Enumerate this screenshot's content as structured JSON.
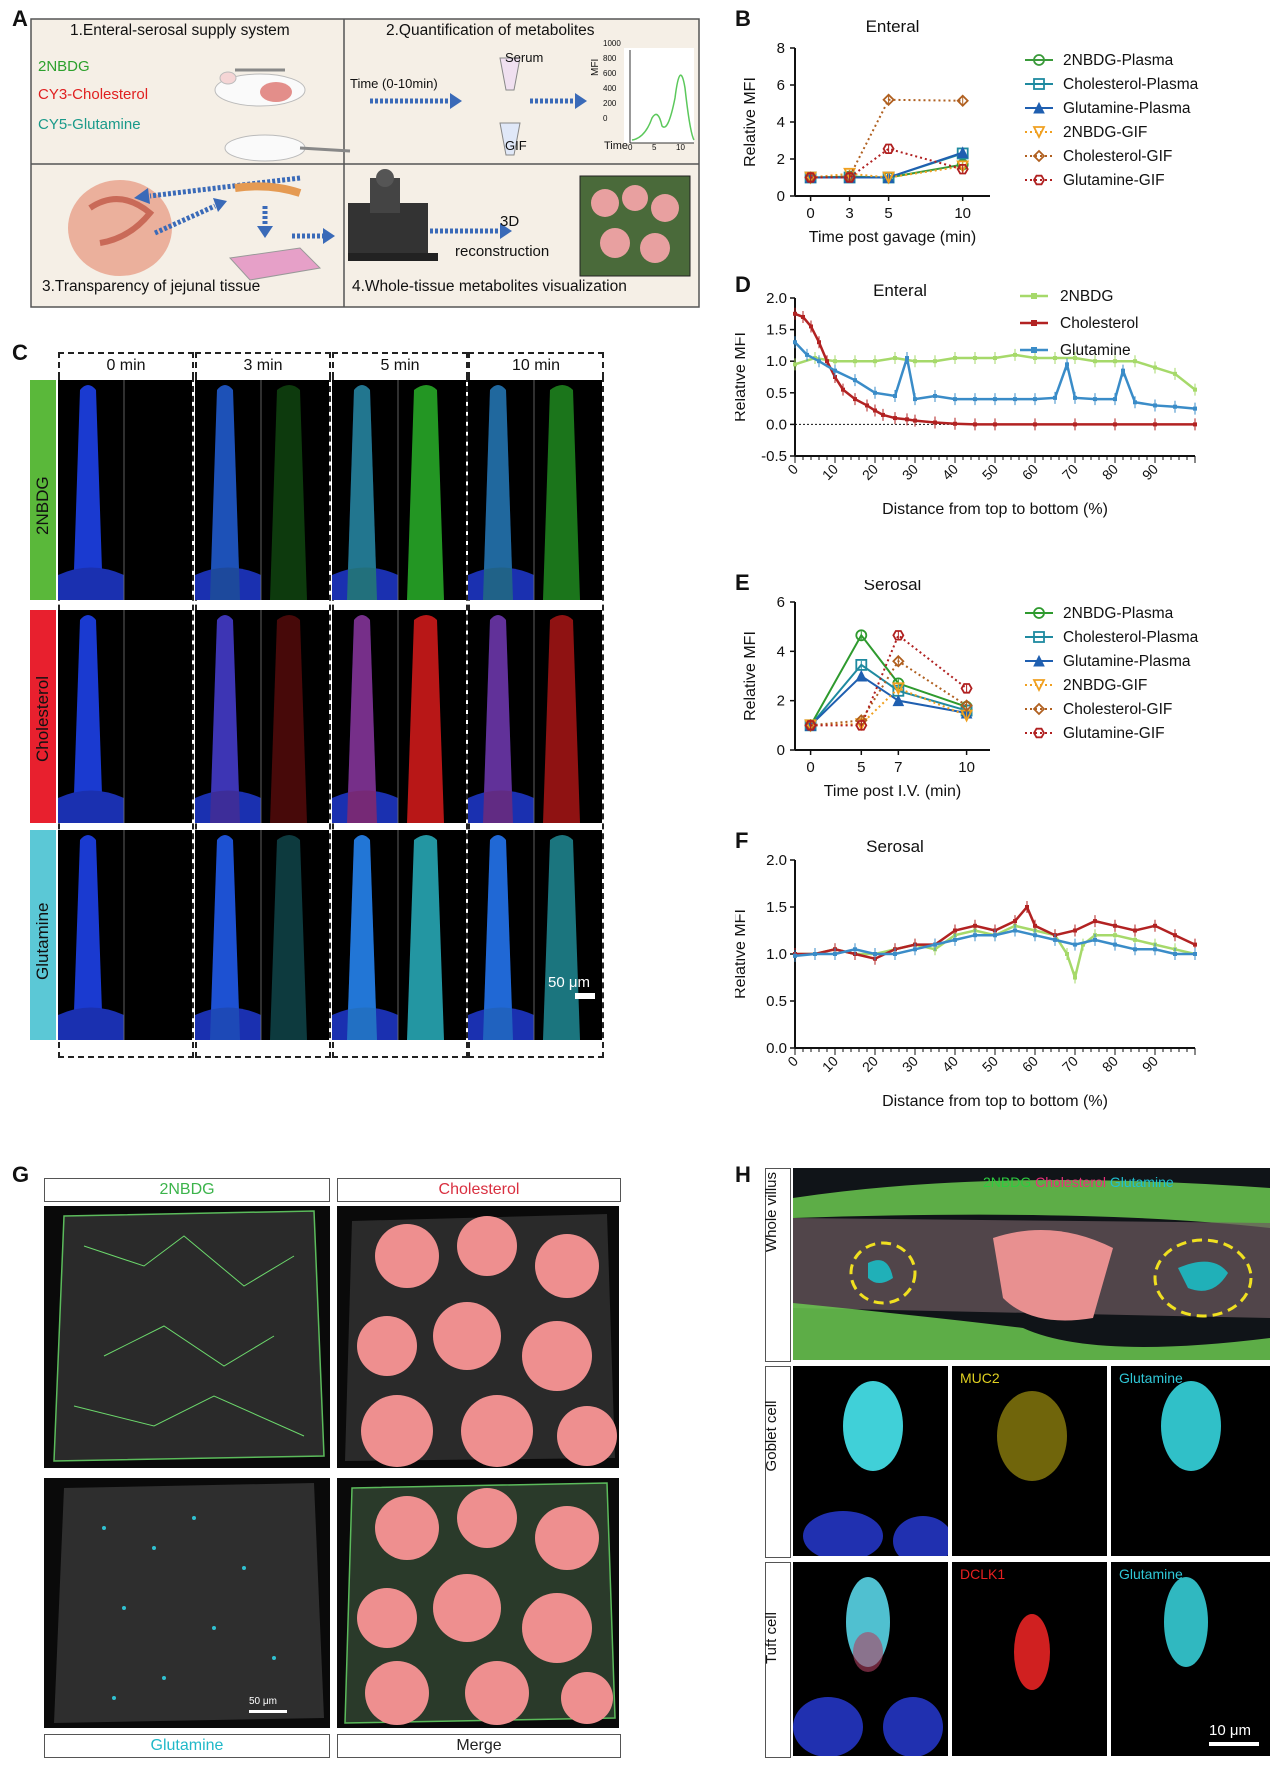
{
  "panels": {
    "A": "A",
    "B": "B",
    "C": "C",
    "D": "D",
    "E": "E",
    "F": "F",
    "G": "G",
    "H": "H"
  },
  "panelA": {
    "step1": "1.Enteral-serosal supply system",
    "step2": "2.Quantification of metabolites",
    "step3": "3.Transparency of jejunal tissue",
    "step4": "4.Whole-tissue metabolites visualization",
    "probe1": "2NBDG",
    "probe2": "CY3-Cholesterol",
    "probe3": "CY5-Glutamine",
    "time_label": "Time (0-10min)",
    "serum_label": "Serum",
    "gif_label": "GIF",
    "mini_ylabel": "MFI",
    "mini_xlabel": "Time",
    "mini_yticks": [
      "1000",
      "800",
      "600",
      "400",
      "200",
      "0"
    ],
    "mini_xticks": [
      "0",
      "5",
      "10"
    ],
    "recon_line1": "3D",
    "recon_line2": "reconstruction",
    "colors": {
      "probe1": "#2ca02c",
      "probe2": "#e02020",
      "probe3": "#1a9a8a"
    }
  },
  "panelC": {
    "times": [
      "0 min",
      "3 min",
      "5 min",
      "10 min"
    ],
    "rows": [
      "2NBDG",
      "Cholesterol",
      "Glutamine"
    ],
    "row_colors": [
      "#5ab83a",
      "#e8202e",
      "#5bc8d6"
    ],
    "scalebar": "50 μm"
  },
  "panelG": {
    "labels": [
      "2NBDG",
      "Cholesterol",
      "Glutamine",
      "Merge"
    ],
    "label_colors": [
      "#3cb44b",
      "#d93040",
      "#20b8c8",
      "#222222"
    ],
    "scalebar": "50 μm"
  },
  "panelH": {
    "channels_top": [
      "2NBDG",
      "Cholesterol",
      "Glutamine"
    ],
    "channel_colors": [
      "#2ecc40",
      "#e8307a",
      "#20c0d0"
    ],
    "row_labels": [
      "Whole villus",
      "Goblet cell",
      "Tuft cell"
    ],
    "goblet_channels": [
      "MUC2",
      "Glutamine"
    ],
    "tuft_channels": [
      "DCLK1",
      "Glutamine"
    ],
    "goblet_channel_colors": [
      "#e0d020",
      "#30c8d8"
    ],
    "tuft_channel_colors": [
      "#e82020",
      "#30c8d8"
    ],
    "scalebar": "10 μm"
  },
  "chart_data": [
    {
      "panel": "B",
      "type": "line",
      "title": "Enteral",
      "xlabel": "Time post gavage (min)",
      "ylabel": "Relative MFI",
      "categories": [
        "0",
        "3",
        "5",
        "10"
      ],
      "yticks": [
        "0",
        "2",
        "4",
        "6",
        "8"
      ],
      "ylim": [
        0,
        8
      ],
      "series": [
        {
          "name": "2NBDG-Plasma",
          "color": "#3a9a3a",
          "marker": "circle",
          "dotted": false,
          "values": [
            1.0,
            1.05,
            1.0,
            1.7
          ]
        },
        {
          "name": "Cholesterol-Plasma",
          "color": "#1f8aa0",
          "marker": "square",
          "dotted": false,
          "values": [
            1.0,
            1.0,
            1.0,
            2.3
          ]
        },
        {
          "name": "Glutamine-Plasma",
          "color": "#1f5fb0",
          "marker": "triangle",
          "dotted": false,
          "values": [
            1.0,
            1.0,
            1.0,
            2.35
          ]
        },
        {
          "name": "2NBDG-GIF",
          "color": "#f0a020",
          "marker": "tri-down",
          "dotted": true,
          "values": [
            1.0,
            1.2,
            1.0,
            1.6
          ]
        },
        {
          "name": "Cholesterol-GIF",
          "color": "#b06020",
          "marker": "diamond",
          "dotted": true,
          "values": [
            1.0,
            1.05,
            5.2,
            5.15
          ]
        },
        {
          "name": "Glutamine-GIF",
          "color": "#b02020",
          "marker": "hex",
          "dotted": true,
          "values": [
            1.0,
            1.0,
            2.55,
            1.45
          ]
        }
      ]
    },
    {
      "panel": "D",
      "type": "line",
      "title": "Enteral",
      "xlabel": "Distance from top to bottom (%)",
      "ylabel": "Relative MFI",
      "xticks": [
        "0",
        "10",
        "20",
        "30",
        "40",
        "50",
        "60",
        "70",
        "80",
        "90"
      ],
      "yticks": [
        "2.0",
        "1.5",
        "1.0",
        "0.5",
        "0.0",
        "-0.5"
      ],
      "ylim": [
        -0.5,
        2.0
      ],
      "xlim": [
        0,
        100
      ],
      "series": [
        {
          "name": "2NBDG",
          "color": "#a6d96a",
          "x": [
            0,
            5,
            10,
            15,
            20,
            25,
            30,
            35,
            40,
            45,
            50,
            55,
            60,
            65,
            70,
            75,
            80,
            85,
            90,
            95,
            100
          ],
          "values": [
            0.95,
            1.05,
            1.0,
            1.0,
            1.0,
            1.05,
            1.0,
            1.0,
            1.05,
            1.05,
            1.05,
            1.1,
            1.05,
            1.05,
            1.05,
            1.0,
            1.0,
            1.0,
            0.9,
            0.8,
            0.55
          ]
        },
        {
          "name": "Cholesterol",
          "color": "#b22222",
          "x": [
            0,
            2,
            4,
            6,
            8,
            10,
            12,
            15,
            18,
            20,
            22,
            25,
            28,
            30,
            35,
            40,
            45,
            50,
            60,
            70,
            80,
            90,
            100
          ],
          "values": [
            1.75,
            1.7,
            1.55,
            1.3,
            1.0,
            0.75,
            0.55,
            0.4,
            0.3,
            0.22,
            0.15,
            0.1,
            0.08,
            0.06,
            0.03,
            0.01,
            0.0,
            0.0,
            0.0,
            0.0,
            0.0,
            0.0,
            0.0
          ]
        },
        {
          "name": "Glutamine",
          "color": "#3a8cc8",
          "x": [
            0,
            3,
            6,
            10,
            15,
            20,
            25,
            28,
            30,
            35,
            40,
            45,
            50,
            55,
            60,
            65,
            68,
            70,
            75,
            80,
            82,
            85,
            90,
            95,
            100
          ],
          "values": [
            1.3,
            1.1,
            1.0,
            0.85,
            0.7,
            0.5,
            0.45,
            1.05,
            0.4,
            0.45,
            0.4,
            0.4,
            0.4,
            0.4,
            0.4,
            0.42,
            0.95,
            0.42,
            0.4,
            0.4,
            0.85,
            0.35,
            0.3,
            0.28,
            0.25
          ]
        }
      ]
    },
    {
      "panel": "E",
      "type": "line",
      "title": "Serosal",
      "xlabel": "Time post I.V. (min)",
      "ylabel": "Relative MFI",
      "categories": [
        "0",
        "5",
        "7",
        "10"
      ],
      "yticks": [
        "0",
        "2",
        "4",
        "6"
      ],
      "ylim": [
        0,
        6
      ],
      "series": [
        {
          "name": "2NBDG-Plasma",
          "color": "#2e9a2e",
          "marker": "circle",
          "dotted": false,
          "values": [
            1.0,
            4.65,
            2.7,
            1.75
          ]
        },
        {
          "name": "Cholesterol-Plasma",
          "color": "#1f8aa0",
          "marker": "square",
          "dotted": false,
          "values": [
            1.0,
            3.45,
            2.4,
            1.6
          ]
        },
        {
          "name": "Glutamine-Plasma",
          "color": "#1f5fb0",
          "marker": "triangle",
          "dotted": false,
          "values": [
            1.0,
            3.0,
            2.0,
            1.5
          ]
        },
        {
          "name": "2NBDG-GIF",
          "color": "#f0a020",
          "marker": "tri-down",
          "dotted": true,
          "values": [
            1.0,
            1.05,
            2.5,
            1.4
          ]
        },
        {
          "name": "Cholesterol-GIF",
          "color": "#b06020",
          "marker": "diamond",
          "dotted": true,
          "values": [
            1.0,
            1.2,
            3.6,
            1.8
          ]
        },
        {
          "name": "Glutamine-GIF",
          "color": "#b02020",
          "marker": "hex",
          "dotted": true,
          "values": [
            1.0,
            1.0,
            4.65,
            2.5
          ]
        }
      ]
    },
    {
      "panel": "F",
      "type": "line",
      "title": "Serosal",
      "xlabel": "Distance from top to bottom (%)",
      "ylabel": "Relative MFI",
      "xticks": [
        "0",
        "10",
        "20",
        "30",
        "40",
        "50",
        "60",
        "70",
        "80",
        "90"
      ],
      "yticks": [
        "2.0",
        "1.5",
        "1.0",
        "0.5",
        "0.0"
      ],
      "ylim": [
        0,
        2.0
      ],
      "xlim": [
        0,
        100
      ],
      "series": [
        {
          "name": "2NBDG",
          "color": "#a6d96a",
          "x": [
            0,
            5,
            10,
            15,
            20,
            25,
            30,
            35,
            40,
            45,
            50,
            55,
            60,
            65,
            68,
            70,
            72,
            75,
            80,
            85,
            90,
            95,
            100
          ],
          "values": [
            1.0,
            1.0,
            1.05,
            1.0,
            1.0,
            1.05,
            1.1,
            1.05,
            1.2,
            1.25,
            1.2,
            1.3,
            1.25,
            1.2,
            1.0,
            0.75,
            1.1,
            1.2,
            1.2,
            1.15,
            1.1,
            1.05,
            1.0
          ]
        },
        {
          "name": "Cholesterol",
          "color": "#b22222",
          "x": [
            0,
            5,
            10,
            15,
            20,
            25,
            30,
            35,
            40,
            45,
            50,
            55,
            58,
            60,
            65,
            70,
            75,
            80,
            85,
            90,
            95,
            100
          ],
          "values": [
            1.0,
            1.0,
            1.05,
            1.0,
            0.95,
            1.05,
            1.1,
            1.1,
            1.25,
            1.3,
            1.25,
            1.35,
            1.5,
            1.3,
            1.2,
            1.25,
            1.35,
            1.3,
            1.25,
            1.3,
            1.2,
            1.1
          ]
        },
        {
          "name": "Glutamine",
          "color": "#3a8cc8",
          "x": [
            0,
            5,
            10,
            15,
            20,
            25,
            30,
            35,
            40,
            45,
            50,
            55,
            60,
            65,
            70,
            75,
            80,
            85,
            90,
            95,
            100
          ],
          "values": [
            0.98,
            1.0,
            1.0,
            1.05,
            1.0,
            1.0,
            1.05,
            1.1,
            1.15,
            1.2,
            1.2,
            1.25,
            1.2,
            1.15,
            1.1,
            1.15,
            1.1,
            1.05,
            1.05,
            1.0,
            1.0
          ]
        }
      ]
    }
  ]
}
